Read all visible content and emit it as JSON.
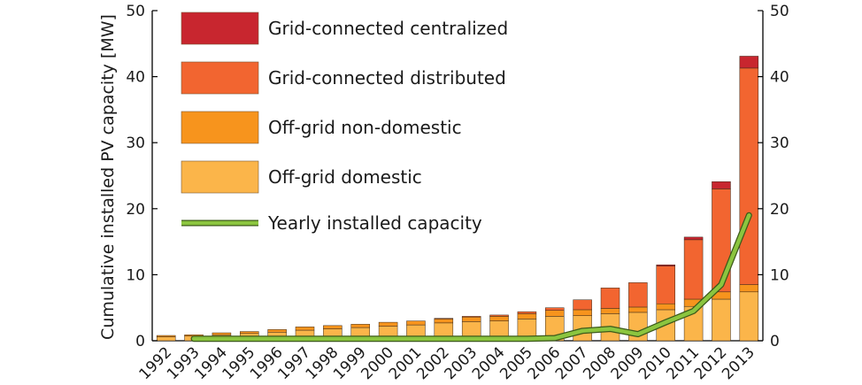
{
  "chart_data": {
    "type": "bar",
    "ylabel": "Cumulative installed PV capacity [MW]",
    "ylim": [
      0,
      50
    ],
    "yticks": [
      0,
      10,
      20,
      30,
      40,
      50
    ],
    "categories": [
      "1992",
      "1993",
      "1994",
      "1995",
      "1996",
      "1997",
      "1998",
      "1999",
      "2000",
      "2001",
      "2002",
      "2003",
      "2004",
      "2005",
      "2006",
      "2007",
      "2008",
      "2009",
      "2010",
      "2011",
      "2012",
      "2013"
    ],
    "series": [
      {
        "name": "Off-grid domestic",
        "color": "#fbb54a",
        "values": [
          0.6,
          0.7,
          0.9,
          1.1,
          1.3,
          1.6,
          1.8,
          2.0,
          2.2,
          2.4,
          2.7,
          2.9,
          3.0,
          3.3,
          3.7,
          3.8,
          4.1,
          4.3,
          4.7,
          5.2,
          6.3,
          7.4
        ]
      },
      {
        "name": "Off-grid non-domestic",
        "color": "#f7941d",
        "values": [
          0.2,
          0.2,
          0.3,
          0.3,
          0.4,
          0.5,
          0.5,
          0.5,
          0.6,
          0.6,
          0.6,
          0.7,
          0.7,
          0.8,
          0.9,
          0.9,
          0.8,
          0.8,
          0.9,
          1.1,
          1.1,
          1.1
        ]
      },
      {
        "name": "Grid-connected distributed",
        "color": "#f26530",
        "values": [
          0,
          0,
          0,
          0,
          0,
          0,
          0,
          0,
          0,
          0,
          0.1,
          0.1,
          0.2,
          0.3,
          0.4,
          1.5,
          3.1,
          3.7,
          5.7,
          9.0,
          15.6,
          32.8
        ]
      },
      {
        "name": "Grid-connected centralized",
        "color": "#c8262f",
        "values": [
          0,
          0,
          0,
          0,
          0,
          0,
          0,
          0,
          0,
          0,
          0,
          0,
          0,
          0,
          0,
          0,
          0,
          0,
          0.2,
          0.4,
          1.1,
          1.8
        ]
      }
    ],
    "line": {
      "name": "Yearly installed capacity",
      "color": "#8bc53f",
      "values": [
        null,
        0.3,
        0.3,
        0.3,
        0.3,
        0.3,
        0.3,
        0.3,
        0.3,
        0.3,
        0.3,
        0.3,
        0.3,
        0.3,
        0.4,
        1.5,
        1.8,
        1.0,
        2.8,
        4.5,
        8.5,
        19.0
      ]
    },
    "legend": "top-left",
    "grid": false
  }
}
